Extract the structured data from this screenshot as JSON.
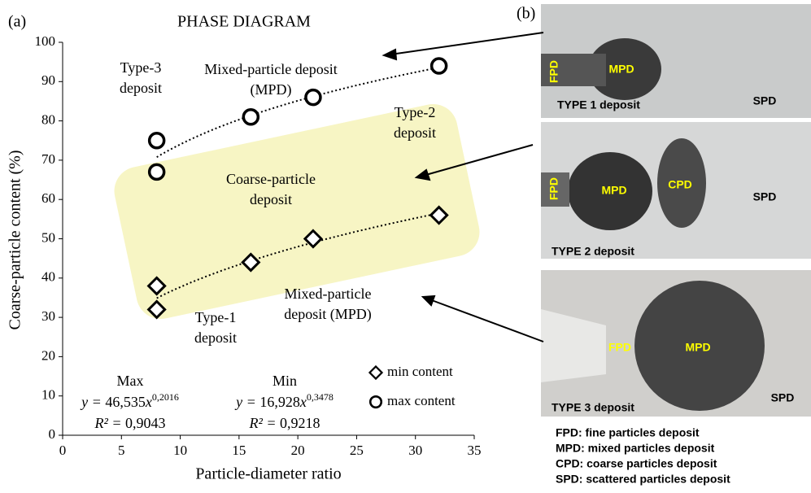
{
  "chart_data": {
    "type": "scatter",
    "panel_label": "(a)",
    "title": "PHASE DIAGRAM",
    "xlabel": "Particle-diameter ratio",
    "ylabel": "Coarse-particle content (%)",
    "xlim": [
      0,
      35
    ],
    "ylim": [
      0,
      100
    ],
    "xticks": [
      0,
      5,
      10,
      15,
      20,
      25,
      30,
      35
    ],
    "yticks": [
      0,
      10,
      20,
      30,
      40,
      50,
      60,
      70,
      80,
      90,
      100
    ],
    "series": [
      {
        "name": "min content",
        "marker": "diamond",
        "color": "#000000",
        "x": [
          8,
          8,
          16,
          21.3,
          32
        ],
        "values": [
          32,
          38,
          44,
          50,
          56
        ]
      },
      {
        "name": "max content",
        "marker": "circle",
        "color": "#000000",
        "x": [
          8,
          8,
          16,
          21.3,
          32
        ],
        "values": [
          67,
          75,
          81,
          86,
          94
        ]
      }
    ],
    "fits": [
      {
        "name": "Max",
        "series": 1,
        "lead": "y = ",
        "a": {
          "value": 46.535,
          "label": "46,535"
        },
        "var": "x",
        "b": {
          "value": 0.2016,
          "label": "0,2016"
        },
        "r2_lead": "R² = ",
        "r2": {
          "value": 0.9043,
          "label": "0,9043"
        }
      },
      {
        "name": "Min",
        "series": 0,
        "lead": "y = ",
        "a": {
          "value": 16.928,
          "label": "16,928"
        },
        "var": "x",
        "b": {
          "value": 0.3478,
          "label": "0,3478"
        },
        "r2_lead": "R² = ",
        "r2": {
          "value": 0.9218,
          "label": "0,9218"
        }
      }
    ],
    "annotations": [
      [
        "Type-3",
        "deposit"
      ],
      [
        "Mixed-particle  deposit",
        "(MPD)"
      ],
      [
        "Type-2",
        "deposit"
      ],
      [
        "Coarse-particle",
        "deposit"
      ],
      [
        "Mixed-particle",
        "deposit (MPD)"
      ],
      [
        "Type-1",
        "deposit"
      ]
    ]
  },
  "panel_b": {
    "label": "(b)",
    "photos": [
      [
        "FPD",
        "MPD",
        "TYPE 1 deposit",
        "SPD"
      ],
      [
        "FPD",
        "MPD",
        "CPD",
        "SPD",
        "TYPE 2 deposit"
      ],
      [
        "FPD",
        "MPD",
        "TYPE 3 deposit",
        "SPD"
      ]
    ],
    "legend": [
      "FPD: fine particles deposit",
      "MPD: mixed particles deposit",
      "CPD: coarse particles deposit",
      "SPD: scattered particles deposit"
    ]
  }
}
